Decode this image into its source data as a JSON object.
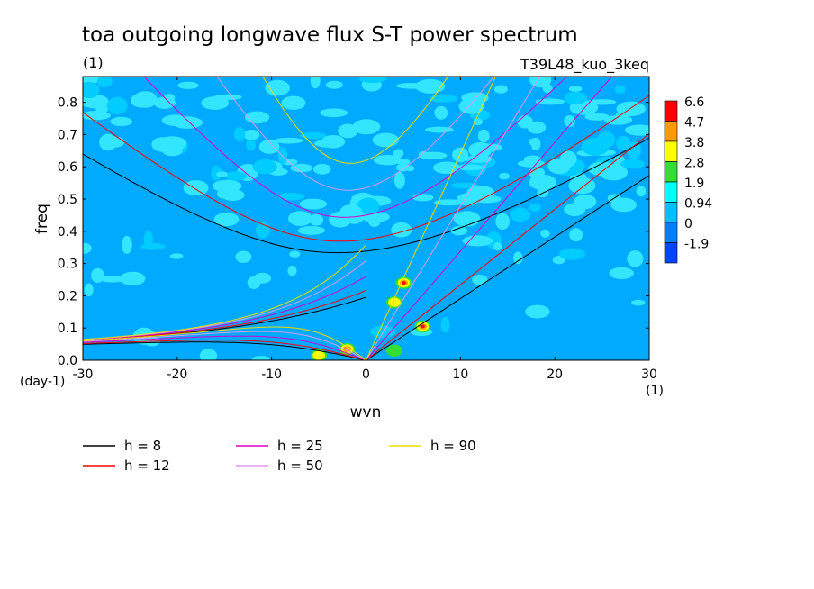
{
  "chart_data": {
    "type": "heatmap",
    "title": "toa outgoing longwave flux S-T power spectrum",
    "title_unit": "(1)",
    "experiment": "T39L48_kuo_3keq",
    "xlabel": "wvn",
    "x_unit": "(1)",
    "ylabel": "freq",
    "y_unit": "(day-1)",
    "xlim": [
      -30,
      30
    ],
    "ylim": [
      0,
      0.88
    ],
    "x_ticks": [
      "-30",
      "-20",
      "-10",
      "0",
      "10",
      "20",
      "30"
    ],
    "y_ticks": [
      "0.0",
      "0.1",
      "0.2",
      "0.3",
      "0.4",
      "0.5",
      "0.6",
      "0.7",
      "0.8"
    ],
    "colorbar": {
      "labels": [
        "6.6",
        "4.7",
        "3.8",
        "2.8",
        "1.9",
        "0.94",
        "0",
        "-1.9"
      ],
      "colors": [
        "#ff0000",
        "#ff9900",
        "#ffff00",
        "#33dd33",
        "#00ffff",
        "#00bfff",
        "#0080ff",
        "#0044ff"
      ]
    },
    "field_colors": {
      "background": "#00aaff",
      "light": "#33e6ff",
      "mid": "#00ccff"
    },
    "hotspots": [
      {
        "wvn": 4,
        "freq": 0.24,
        "level": "6.6"
      },
      {
        "wvn": 6,
        "freq": 0.105,
        "level": "6.6"
      },
      {
        "wvn": -2,
        "freq": 0.035,
        "level": "4.7"
      },
      {
        "wvn": -5,
        "freq": 0.015,
        "level": "2.8"
      },
      {
        "wvn": 3,
        "freq": 0.18,
        "level": "2.8"
      },
      {
        "wvn": 3,
        "freq": 0.03,
        "level": "1.9"
      }
    ],
    "series": [
      {
        "name": "h =  8",
        "color": "#000000"
      },
      {
        "name": "h = 12",
        "color": "#ff0000"
      },
      {
        "name": "h = 25",
        "color": "#dd00cc"
      },
      {
        "name": "h = 50",
        "color": "#dd99ee"
      },
      {
        "name": "h = 90",
        "color": "#eedd00"
      }
    ],
    "equivalent_depths_m": [
      8,
      12,
      25,
      50,
      90
    ],
    "curve_families": [
      "kelvin",
      "mixed-rossby-gravity",
      "rossby",
      "inertia-gravity"
    ]
  }
}
